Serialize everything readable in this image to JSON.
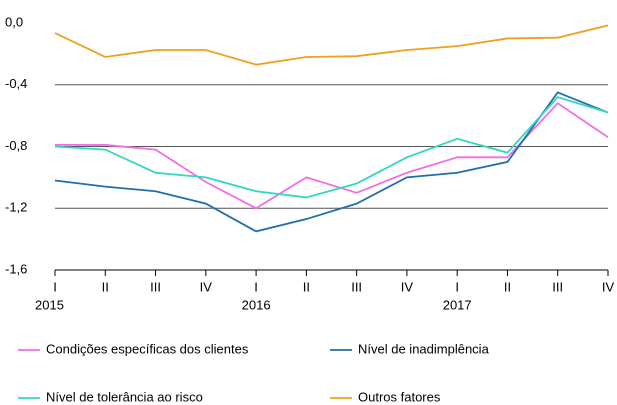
{
  "chart_data": {
    "type": "line",
    "categories": [
      "I",
      "II",
      "III",
      "IV",
      "I",
      "II",
      "III",
      "IV",
      "I",
      "II",
      "III",
      "IV"
    ],
    "years": [
      "2015",
      null,
      null,
      null,
      "2016",
      null,
      null,
      null,
      "2017",
      null,
      null,
      null
    ],
    "series": [
      {
        "name": "Condições específicas dos clientes",
        "color": "#f06ee8",
        "values": [
          -0.79,
          -0.79,
          -0.82,
          -1.03,
          -1.2,
          -1.0,
          -1.1,
          -0.97,
          -0.87,
          -0.87,
          -0.52,
          -0.74
        ]
      },
      {
        "name": "Nível de inadimplência",
        "color": "#1f6fa8",
        "values": [
          -1.02,
          -1.06,
          -1.09,
          -1.17,
          -1.35,
          -1.27,
          -1.17,
          -1.0,
          -0.97,
          -0.9,
          -0.45,
          -0.58
        ]
      },
      {
        "name": "Nível de tolerância ao risco",
        "color": "#33d6c0",
        "values": [
          -0.8,
          -0.82,
          -0.97,
          -1.0,
          -1.09,
          -1.13,
          -1.04,
          -0.87,
          -0.75,
          -0.84,
          -0.48,
          -0.58
        ]
      },
      {
        "name": "Outros fatores",
        "color": "#f0a020",
        "values": [
          -0.065,
          -0.22,
          -0.175,
          -0.175,
          -0.27,
          -0.22,
          -0.215,
          -0.175,
          -0.15,
          -0.1,
          -0.095,
          -0.015
        ]
      }
    ],
    "ylim": [
      -1.6,
      0
    ],
    "yticks": [
      {
        "value": 0,
        "label": "0,0"
      },
      {
        "value": -0.4,
        "label": "-0,4"
      },
      {
        "value": -0.8,
        "label": "-0,8"
      },
      {
        "value": -1.2,
        "label": "-1,2"
      },
      {
        "value": -1.6,
        "label": "-1,6"
      }
    ],
    "grid": true
  }
}
